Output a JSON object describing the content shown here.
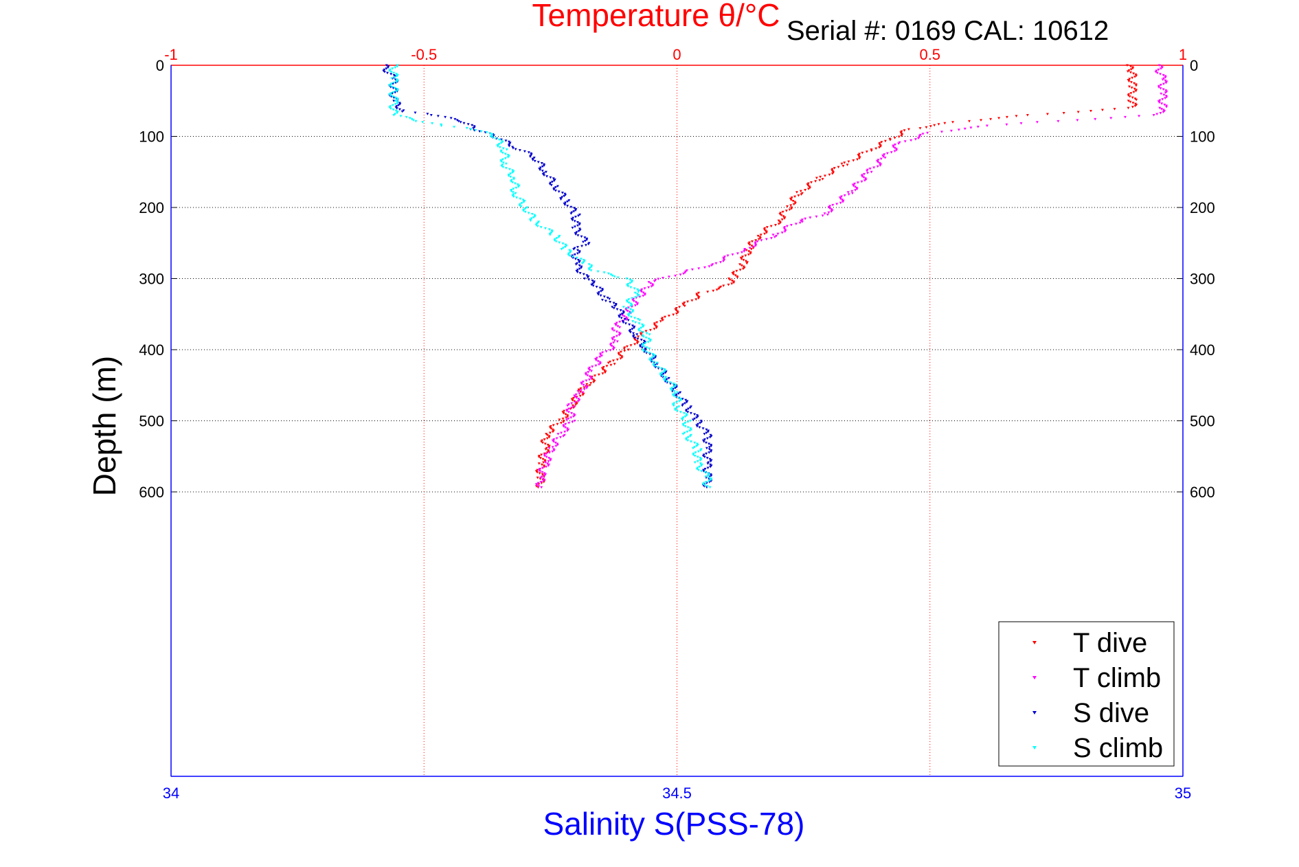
{
  "chart_data": {
    "type": "scatter",
    "title": "Temperature θ/°C",
    "annotation": "Serial #: 0169 CAL: 10612",
    "ylabel": "Depth (m)",
    "xlabel_bottom": "Salinity S(PSS-78)",
    "xlabel_top": "Temperature θ/°C",
    "y_ticks": [
      "0",
      "100",
      "200",
      "300",
      "400",
      "500",
      "600"
    ],
    "y_tick_values": [
      0,
      100,
      200,
      300,
      400,
      500,
      600
    ],
    "ylim": [
      0,
      1000
    ],
    "y_reversed": true,
    "x_top_ticks": [
      "-1",
      "-0.5",
      "0",
      "0.5",
      "1"
    ],
    "x_top_tick_values": [
      -1,
      -0.5,
      0,
      0.5,
      1
    ],
    "x_top_lim": [
      -1,
      1
    ],
    "x_bottom_ticks": [
      "34",
      "34.5",
      "35"
    ],
    "x_bottom_tick_values": [
      34,
      34.5,
      35
    ],
    "x_bottom_lim": [
      34,
      35
    ],
    "grid": true,
    "legend_position": "bottom-right",
    "colors": {
      "temperature_axis": "#ff0000",
      "salinity_axis": "#0000ff",
      "t_dive": "#ff0000",
      "t_climb": "#ff00ff",
      "s_dive": "#0000cc",
      "s_climb": "#00ffff"
    },
    "series": [
      {
        "name": "T dive",
        "axis": "temperature",
        "color": "#ff0000",
        "points": [
          [
            0.89,
            0
          ],
          [
            0.9,
            10
          ],
          [
            0.9,
            30
          ],
          [
            0.9,
            50
          ],
          [
            0.9,
            60
          ],
          [
            0.7,
            70
          ],
          [
            0.55,
            80
          ],
          [
            0.46,
            90
          ],
          [
            0.42,
            105
          ],
          [
            0.38,
            120
          ],
          [
            0.33,
            140
          ],
          [
            0.28,
            160
          ],
          [
            0.24,
            180
          ],
          [
            0.22,
            200
          ],
          [
            0.2,
            220
          ],
          [
            0.16,
            240
          ],
          [
            0.14,
            260
          ],
          [
            0.13,
            280
          ],
          [
            0.11,
            300
          ],
          [
            0.1,
            310
          ],
          [
            0.05,
            320
          ],
          [
            0.01,
            340
          ],
          [
            -0.03,
            360
          ],
          [
            -0.07,
            380
          ],
          [
            -0.1,
            400
          ],
          [
            -0.13,
            420
          ],
          [
            -0.18,
            450
          ],
          [
            -0.21,
            480
          ],
          [
            -0.23,
            500
          ],
          [
            -0.26,
            520
          ],
          [
            -0.26,
            540
          ],
          [
            -0.27,
            560
          ],
          [
            -0.27,
            580
          ],
          [
            -0.27,
            595
          ]
        ]
      },
      {
        "name": "T climb",
        "axis": "temperature",
        "color": "#ff00ff",
        "points": [
          [
            0.95,
            0
          ],
          [
            0.96,
            20
          ],
          [
            0.96,
            40
          ],
          [
            0.96,
            60
          ],
          [
            0.95,
            70
          ],
          [
            0.72,
            80
          ],
          [
            0.62,
            85
          ],
          [
            0.5,
            95
          ],
          [
            0.44,
            110
          ],
          [
            0.41,
            130
          ],
          [
            0.38,
            150
          ],
          [
            0.34,
            180
          ],
          [
            0.29,
            210
          ],
          [
            0.24,
            220
          ],
          [
            0.19,
            240
          ],
          [
            0.13,
            260
          ],
          [
            0.07,
            280
          ],
          [
            0.02,
            290
          ],
          [
            -0.05,
            305
          ],
          [
            -0.08,
            330
          ],
          [
            -0.1,
            350
          ],
          [
            -0.12,
            370
          ],
          [
            -0.12,
            390
          ],
          [
            -0.15,
            410
          ],
          [
            -0.17,
            430
          ],
          [
            -0.19,
            460
          ],
          [
            -0.21,
            480
          ],
          [
            -0.21,
            500
          ],
          [
            -0.23,
            520
          ],
          [
            -0.25,
            540
          ],
          [
            -0.26,
            560
          ],
          [
            -0.27,
            580
          ],
          [
            -0.27,
            595
          ]
        ]
      },
      {
        "name": "S dive",
        "axis": "salinity",
        "color": "#0000cc",
        "points": [
          [
            34.21,
            0
          ],
          [
            34.22,
            20
          ],
          [
            34.22,
            50
          ],
          [
            34.23,
            65
          ],
          [
            34.26,
            70
          ],
          [
            34.29,
            80
          ],
          [
            34.3,
            90
          ],
          [
            34.32,
            100
          ],
          [
            34.34,
            115
          ],
          [
            34.36,
            130
          ],
          [
            34.37,
            150
          ],
          [
            34.38,
            170
          ],
          [
            34.39,
            190
          ],
          [
            34.4,
            210
          ],
          [
            34.4,
            230
          ],
          [
            34.41,
            250
          ],
          [
            34.4,
            260
          ],
          [
            34.4,
            280
          ],
          [
            34.41,
            300
          ],
          [
            34.42,
            310
          ],
          [
            34.43,
            330
          ],
          [
            34.44,
            340
          ],
          [
            34.45,
            360
          ],
          [
            34.46,
            380
          ],
          [
            34.47,
            400
          ],
          [
            34.48,
            420
          ],
          [
            34.49,
            440
          ],
          [
            34.5,
            460
          ],
          [
            34.51,
            480
          ],
          [
            34.52,
            500
          ],
          [
            34.53,
            520
          ],
          [
            34.53,
            540
          ],
          [
            34.53,
            560
          ],
          [
            34.53,
            580
          ],
          [
            34.53,
            595
          ]
        ]
      },
      {
        "name": "S climb",
        "axis": "salinity",
        "color": "#00ffff",
        "points": [
          [
            34.22,
            0
          ],
          [
            34.22,
            20
          ],
          [
            34.22,
            50
          ],
          [
            34.22,
            70
          ],
          [
            34.25,
            80
          ],
          [
            34.27,
            85
          ],
          [
            34.3,
            90
          ],
          [
            34.32,
            100
          ],
          [
            34.33,
            120
          ],
          [
            34.33,
            140
          ],
          [
            34.34,
            160
          ],
          [
            34.34,
            180
          ],
          [
            34.35,
            200
          ],
          [
            34.36,
            220
          ],
          [
            34.38,
            240
          ],
          [
            34.39,
            260
          ],
          [
            34.41,
            280
          ],
          [
            34.42,
            290
          ],
          [
            34.45,
            300
          ],
          [
            34.46,
            320
          ],
          [
            34.45,
            340
          ],
          [
            34.46,
            360
          ],
          [
            34.47,
            380
          ],
          [
            34.47,
            400
          ],
          [
            34.48,
            420
          ],
          [
            34.49,
            440
          ],
          [
            34.5,
            460
          ],
          [
            34.5,
            480
          ],
          [
            34.51,
            500
          ],
          [
            34.51,
            520
          ],
          [
            34.52,
            540
          ],
          [
            34.52,
            560
          ],
          [
            34.53,
            580
          ],
          [
            34.53,
            595
          ]
        ]
      }
    ]
  }
}
